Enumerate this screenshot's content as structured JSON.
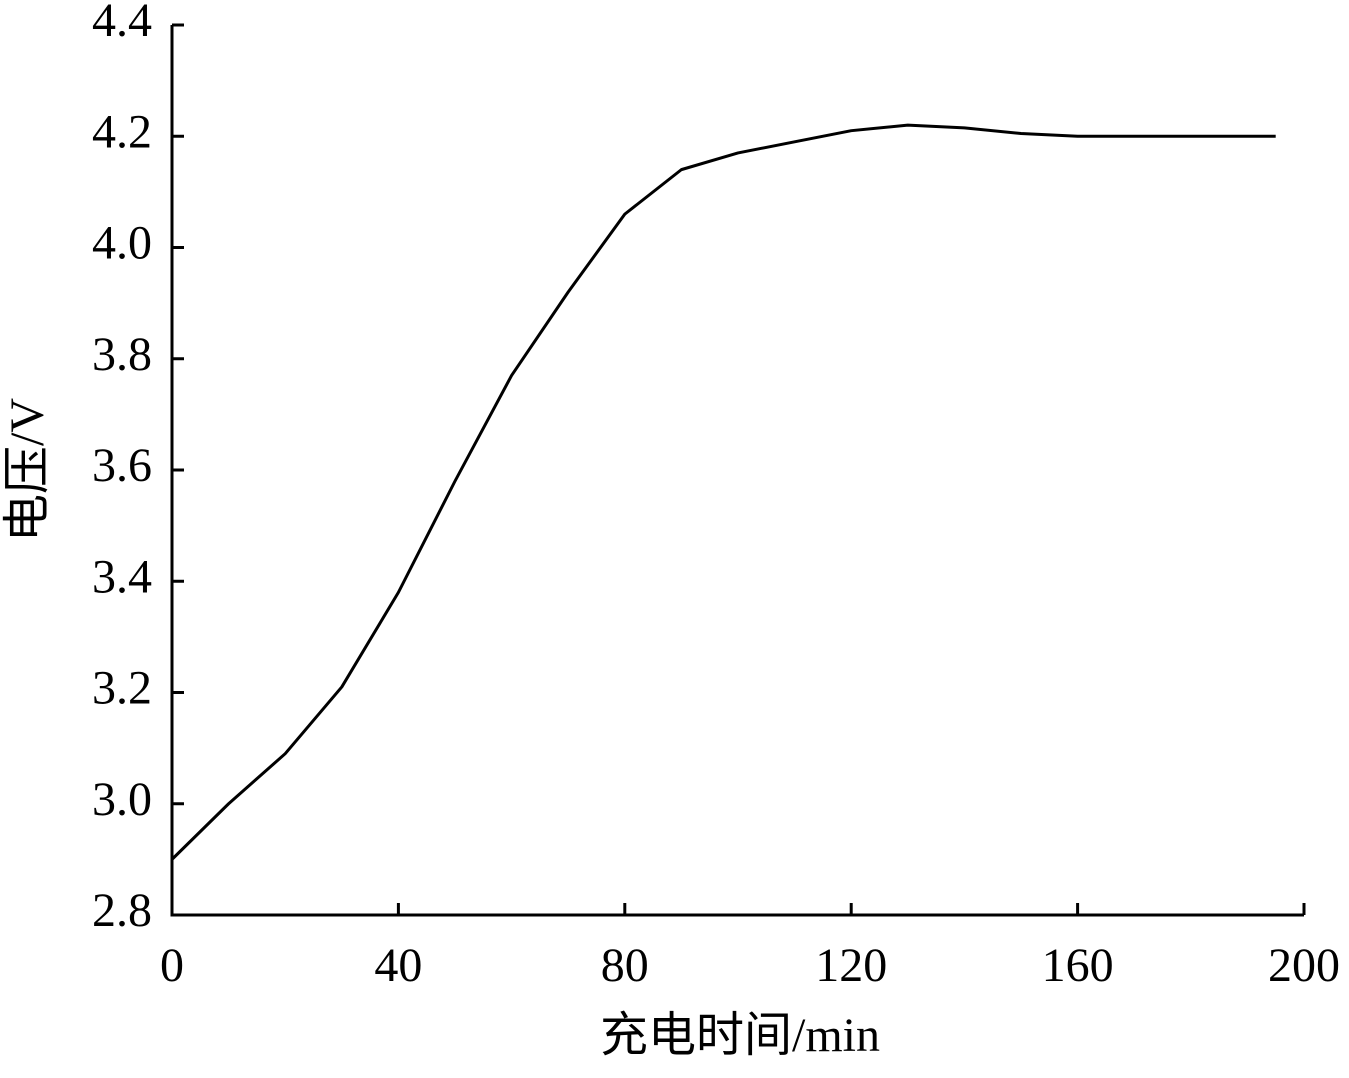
{
  "chart_data": {
    "type": "line",
    "x_label": "充电时间/min",
    "y_label": "电压/V",
    "x": [
      0,
      10,
      20,
      30,
      40,
      50,
      60,
      70,
      80,
      90,
      100,
      110,
      120,
      130,
      140,
      150,
      160,
      195
    ],
    "series": [
      {
        "color": "#000000",
        "values": [
          2.9,
          3.0,
          3.09,
          3.21,
          3.38,
          3.58,
          3.77,
          3.92,
          4.06,
          4.14,
          4.17,
          4.19,
          4.21,
          4.22,
          4.215,
          4.205,
          4.2,
          4.2
        ]
      }
    ],
    "xlim": [
      0,
      200
    ],
    "ylim": [
      2.8,
      4.4
    ],
    "xticks": [
      0,
      40,
      80,
      120,
      160,
      200
    ],
    "yticks": [
      2.8,
      {
        "value": 3,
        "label": "3.0"
      },
      3.2,
      3.4,
      3.6,
      3.8,
      {
        "value": 4,
        "label": "4.0"
      },
      4.2,
      4.4
    ],
    "grid": false
  }
}
